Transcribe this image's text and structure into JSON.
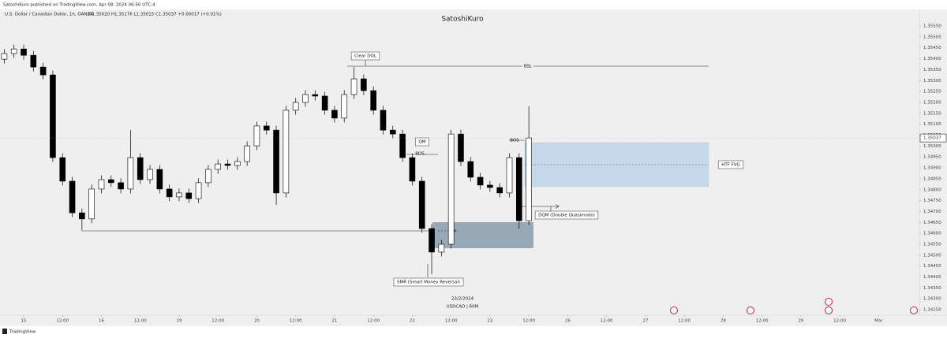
{
  "header": {
    "publisher": "SatoshiKuro published on TradingView.com, Apr 08, 2024 06:50 UTC-4"
  },
  "chart_data": {
    "type": "candlestick",
    "symbol": "U.S. Dollar / Canadian Dollar, 1h, OANDA",
    "ohlc_text": "O1.35020 H1.35176 L1.35015 C1.35037 +0.00017 (+0.01%)",
    "watermark": "SatoshiKuro",
    "date_label": "23/2/2024",
    "ticker_label": "USDCAD | 60M",
    "up_color": "#ffffff",
    "down_color": "#000000",
    "x": [
      -6,
      -3,
      0,
      3,
      6,
      9,
      12,
      15,
      18,
      21,
      24,
      27,
      30,
      33,
      36,
      39,
      42,
      45,
      48,
      51,
      54,
      57,
      60,
      63,
      66,
      69,
      72,
      75,
      78,
      81,
      84,
      87,
      90,
      93,
      96,
      99,
      102,
      105,
      108,
      111,
      114,
      117,
      120,
      123,
      126,
      129,
      132,
      135,
      138,
      141,
      144,
      147,
      150,
      153,
      156
    ],
    "open": [
      1.35398,
      1.35424,
      1.35445,
      1.35416,
      1.35362,
      1.35326,
      1.34947,
      1.34839,
      1.34694,
      1.34666,
      1.34803,
      1.34846,
      1.34832,
      1.34803,
      1.34947,
      1.34846,
      1.34893,
      1.34803,
      1.34767,
      1.34785,
      1.34759,
      1.34832,
      1.34893,
      1.34918,
      1.34911,
      1.34929,
      1.35001,
      1.35092,
      1.35073,
      1.34785,
      1.35164,
      1.352,
      1.35236,
      1.35229,
      1.35164,
      1.35128,
      1.35236,
      1.35308,
      1.35254,
      1.35164,
      1.35073,
      1.35055,
      1.34947,
      1.34839,
      1.34622,
      1.34514,
      1.3455,
      1.35055,
      1.34929,
      1.34857,
      1.34821,
      1.3481,
      1.34785,
      1.34947,
      1.34658
    ],
    "high": [
      1.35444,
      1.35465,
      1.35465,
      1.35436,
      1.35382,
      1.35346,
      1.34967,
      1.34859,
      1.34714,
      1.34823,
      1.34866,
      1.34866,
      1.34852,
      1.35073,
      1.34967,
      1.34913,
      1.34913,
      1.34823,
      1.34805,
      1.34805,
      1.34852,
      1.34913,
      1.34938,
      1.34938,
      1.34949,
      1.35021,
      1.35112,
      1.35112,
      1.35093,
      1.35184,
      1.3522,
      1.35256,
      1.35256,
      1.35249,
      1.35184,
      1.35256,
      1.35362,
      1.35328,
      1.35274,
      1.35184,
      1.35093,
      1.35075,
      1.34967,
      1.34859,
      1.34642,
      1.3457,
      1.35075,
      1.35075,
      1.34949,
      1.34877,
      1.34841,
      1.3483,
      1.34967,
      1.34967,
      1.35182
    ],
    "low": [
      1.35378,
      1.35404,
      1.35396,
      1.35342,
      1.35306,
      1.34927,
      1.34819,
      1.34674,
      1.34615,
      1.34646,
      1.34783,
      1.34812,
      1.34783,
      1.34783,
      1.34826,
      1.34826,
      1.34783,
      1.34747,
      1.34747,
      1.34739,
      1.34739,
      1.34812,
      1.34873,
      1.34891,
      1.34891,
      1.34909,
      1.34981,
      1.35053,
      1.3473,
      1.34765,
      1.35144,
      1.3518,
      1.35209,
      1.35144,
      1.35108,
      1.35108,
      1.35216,
      1.35234,
      1.35144,
      1.35053,
      1.35035,
      1.34927,
      1.34819,
      1.34602,
      1.34413,
      1.34494,
      1.3453,
      1.34909,
      1.34837,
      1.34801,
      1.3479,
      1.34765,
      1.34765,
      1.34622,
      1.34638
    ],
    "close": [
      1.35424,
      1.35445,
      1.35416,
      1.35362,
      1.35326,
      1.34947,
      1.34839,
      1.34694,
      1.34666,
      1.34803,
      1.34846,
      1.34832,
      1.34803,
      1.34947,
      1.34846,
      1.34893,
      1.34803,
      1.34767,
      1.34785,
      1.34759,
      1.34832,
      1.34893,
      1.34918,
      1.34911,
      1.34929,
      1.35001,
      1.35092,
      1.35073,
      1.34785,
      1.35164,
      1.352,
      1.35236,
      1.35229,
      1.35164,
      1.35128,
      1.35236,
      1.35308,
      1.35254,
      1.35164,
      1.35073,
      1.35055,
      1.34947,
      1.34839,
      1.34622,
      1.34514,
      1.3455,
      1.35055,
      1.34929,
      1.34857,
      1.34821,
      1.3481,
      1.34785,
      1.34947,
      1.34658,
      1.35037
    ],
    "last_price_label": "1.35037",
    "xlim": [
      -7.31,
      276.6
    ],
    "ylim": [
      1.34225,
      1.35626
    ],
    "xticks": [
      {
        "value": 0,
        "label": "15"
      },
      {
        "value": 12,
        "label": "12:00"
      },
      {
        "value": 24,
        "label": "16"
      },
      {
        "value": 36,
        "label": "12:00"
      },
      {
        "value": 48,
        "label": "19"
      },
      {
        "value": 60,
        "label": "12:00"
      },
      {
        "value": 72,
        "label": "20"
      },
      {
        "value": 84,
        "label": "12:00"
      },
      {
        "value": 96,
        "label": "21"
      },
      {
        "value": 108,
        "label": "12:00"
      },
      {
        "value": 120,
        "label": "22"
      },
      {
        "value": 132,
        "label": "12:00"
      },
      {
        "value": 144,
        "label": "23"
      },
      {
        "value": 156,
        "label": "12:00"
      },
      {
        "value": 168,
        "label": "26"
      },
      {
        "value": 180,
        "label": "12:00"
      },
      {
        "value": 192,
        "label": "27"
      },
      {
        "value": 204,
        "label": "12:00"
      },
      {
        "value": 216,
        "label": "28"
      },
      {
        "value": 228,
        "label": "12:00"
      },
      {
        "value": 240,
        "label": "29"
      },
      {
        "value": 252,
        "label": "12:00"
      },
      {
        "value": 264,
        "label": "Mar"
      }
    ],
    "yticks": [
      {
        "value": 1.3555,
        "label": "1.35550"
      },
      {
        "value": 1.355,
        "label": "1.35500"
      },
      {
        "value": 1.3545,
        "label": "1.35450"
      },
      {
        "value": 1.354,
        "label": "1.35400"
      },
      {
        "value": 1.3535,
        "label": "1.35350"
      },
      {
        "value": 1.353,
        "label": "1.35300"
      },
      {
        "value": 1.3525,
        "label": "1.35250"
      },
      {
        "value": 1.352,
        "label": "1.35200"
      },
      {
        "value": 1.3515,
        "label": "1.35150"
      },
      {
        "value": 1.351,
        "label": "1.35100"
      },
      {
        "value": 1.3505,
        "label": "1.35050"
      },
      {
        "value": 1.35,
        "label": "1.35000"
      },
      {
        "value": 1.3495,
        "label": "1.34950"
      },
      {
        "value": 1.349,
        "label": "1.34900"
      },
      {
        "value": 1.3485,
        "label": "1.34850"
      },
      {
        "value": 1.348,
        "label": "1.34800"
      },
      {
        "value": 1.3475,
        "label": "1.34750"
      },
      {
        "value": 1.347,
        "label": "1.34700"
      },
      {
        "value": 1.3465,
        "label": "1.34650"
      },
      {
        "value": 1.346,
        "label": "1.34600"
      },
      {
        "value": 1.3455,
        "label": "1.34550"
      },
      {
        "value": 1.345,
        "label": "1.34500"
      },
      {
        "value": 1.3445,
        "label": "1.34450"
      },
      {
        "value": 1.344,
        "label": "1.34400"
      },
      {
        "value": 1.3435,
        "label": "1.34350"
      },
      {
        "value": 1.343,
        "label": "1.34300"
      },
      {
        "value": 1.3425,
        "label": "1.34250"
      }
    ],
    "grid": false,
    "annotations": [
      {
        "text": "Clear DOL"
      },
      {
        "text": "BSL"
      },
      {
        "text": "QM"
      },
      {
        "text": "BOS"
      },
      {
        "text": "BOS"
      },
      {
        "text": "SMR (Smart Money Reversal)"
      },
      {
        "text": "DQM (Double Quasimodo)"
      },
      {
        "text": "HTF FVG"
      }
    ]
  },
  "footer": {
    "brand": "TradingView"
  }
}
